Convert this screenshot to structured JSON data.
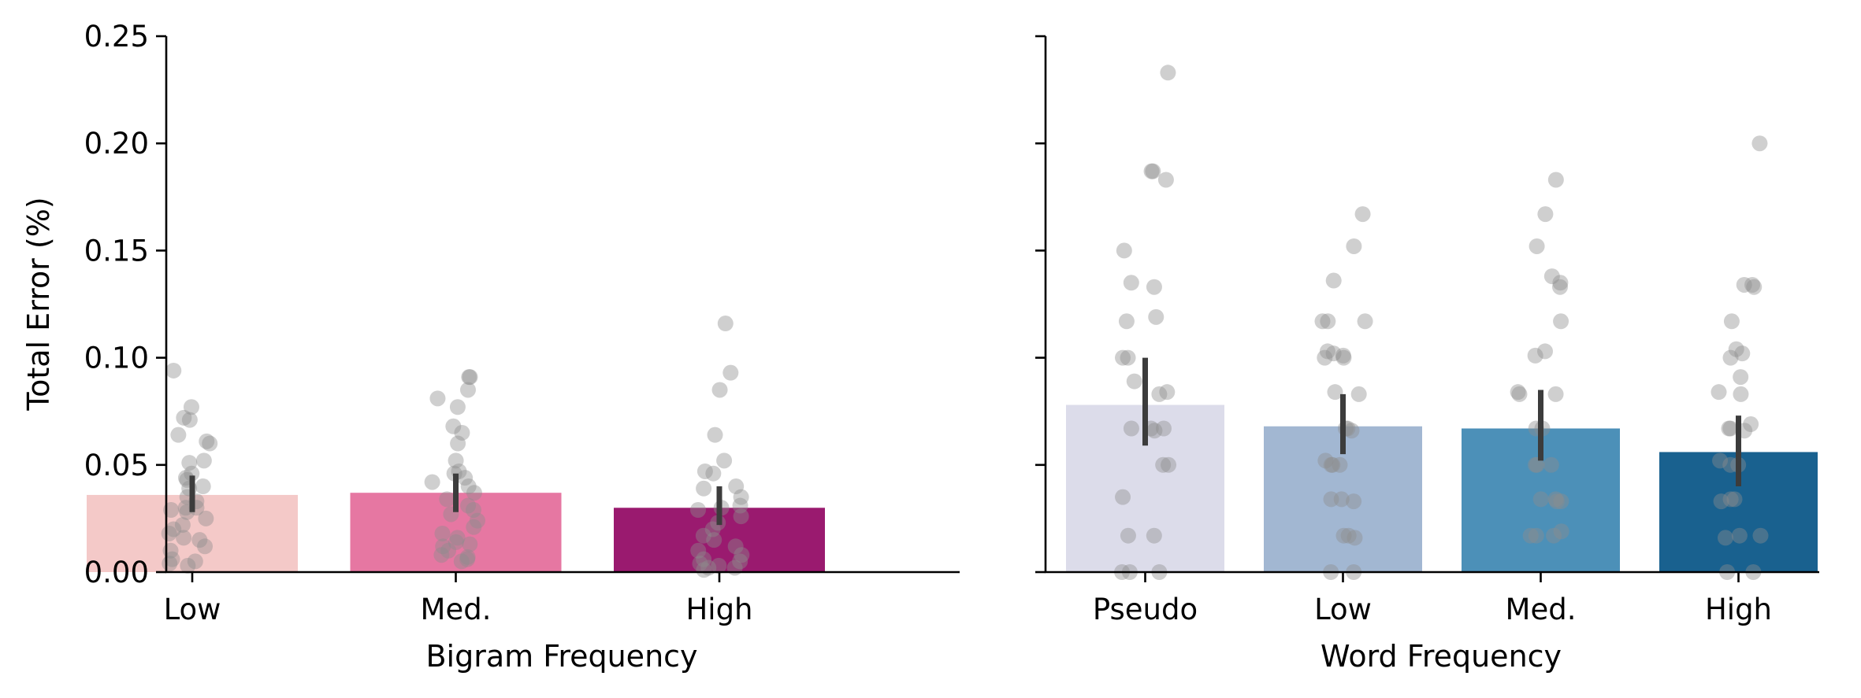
{
  "chart_data": [
    {
      "type": "bar",
      "panel": "left",
      "xlabel": "Bigram Frequency",
      "ylabel": "Total Error (%)",
      "ylim": [
        0,
        0.25
      ],
      "yticks": [
        "0.00",
        "0.05",
        "0.10",
        "0.15",
        "0.20",
        "0.25"
      ],
      "categories": [
        "Low",
        "Med.",
        "High"
      ],
      "values": [
        0.036,
        0.037,
        0.03
      ],
      "ci": [
        [
          0.028,
          0.045
        ],
        [
          0.028,
          0.046
        ],
        [
          0.022,
          0.04
        ]
      ],
      "colors": [
        "#f4c9c8",
        "#e677a2",
        "#9a1a6f"
      ],
      "points": [
        [
          0.094,
          0.077,
          0.072,
          0.071,
          0.064,
          0.06,
          0.061,
          0.052,
          0.051,
          0.046,
          0.044,
          0.043,
          0.04,
          0.039,
          0.035,
          0.033,
          0.03,
          0.03,
          0.029,
          0.028,
          0.025,
          0.022,
          0.02,
          0.018,
          0.016,
          0.015,
          0.012,
          0.01,
          0.006,
          0.005,
          0.004,
          0.003
        ],
        [
          0.091,
          0.091,
          0.085,
          0.081,
          0.077,
          0.068,
          0.065,
          0.06,
          0.052,
          0.047,
          0.046,
          0.044,
          0.042,
          0.04,
          0.037,
          0.034,
          0.031,
          0.029,
          0.027,
          0.024,
          0.021,
          0.018,
          0.016,
          0.014,
          0.013,
          0.012,
          0.01,
          0.008,
          0.007,
          0.006,
          0.005
        ],
        [
          0.116,
          0.093,
          0.085,
          0.064,
          0.052,
          0.047,
          0.046,
          0.04,
          0.039,
          0.035,
          0.031,
          0.03,
          0.029,
          0.026,
          0.023,
          0.02,
          0.017,
          0.015,
          0.012,
          0.01,
          0.008,
          0.006,
          0.005,
          0.004,
          0.003,
          0.002,
          0.002,
          0.001
        ]
      ]
    },
    {
      "type": "bar",
      "panel": "right",
      "xlabel": "Word Frequency",
      "ylabel": "",
      "ylim": [
        0,
        0.25
      ],
      "categories": [
        "Pseudo",
        "Low",
        "Med.",
        "High"
      ],
      "values": [
        0.078,
        0.068,
        0.067,
        0.056
      ],
      "ci": [
        [
          0.059,
          0.1
        ],
        [
          0.055,
          0.083
        ],
        [
          0.052,
          0.085
        ],
        [
          0.04,
          0.073
        ]
      ],
      "colors": [
        "#dcdcea",
        "#a2b7d2",
        "#4c90b8",
        "#19618f"
      ],
      "points": [
        [
          0.233,
          0.187,
          0.187,
          0.183,
          0.15,
          0.135,
          0.133,
          0.119,
          0.117,
          0.1,
          0.1,
          0.089,
          0.084,
          0.083,
          0.067,
          0.067,
          0.067,
          0.066,
          0.05,
          0.05,
          0.035,
          0.017,
          0.017,
          0.0,
          0.0,
          0.0
        ],
        [
          0.167,
          0.152,
          0.136,
          0.117,
          0.117,
          0.117,
          0.103,
          0.102,
          0.101,
          0.1,
          0.1,
          0.084,
          0.083,
          0.067,
          0.067,
          0.066,
          0.052,
          0.05,
          0.05,
          0.05,
          0.034,
          0.034,
          0.033,
          0.017,
          0.017,
          0.016,
          0.0,
          0.0
        ],
        [
          0.183,
          0.167,
          0.152,
          0.138,
          0.135,
          0.133,
          0.117,
          0.103,
          0.101,
          0.084,
          0.083,
          0.083,
          0.067,
          0.067,
          0.05,
          0.05,
          0.05,
          0.034,
          0.034,
          0.033,
          0.033,
          0.019,
          0.017,
          0.017,
          0.017
        ],
        [
          0.2,
          0.134,
          0.134,
          0.133,
          0.117,
          0.104,
          0.102,
          0.1,
          0.091,
          0.084,
          0.083,
          0.069,
          0.067,
          0.067,
          0.066,
          0.052,
          0.05,
          0.05,
          0.034,
          0.034,
          0.033,
          0.017,
          0.017,
          0.016,
          0.0,
          0.0
        ]
      ]
    }
  ]
}
